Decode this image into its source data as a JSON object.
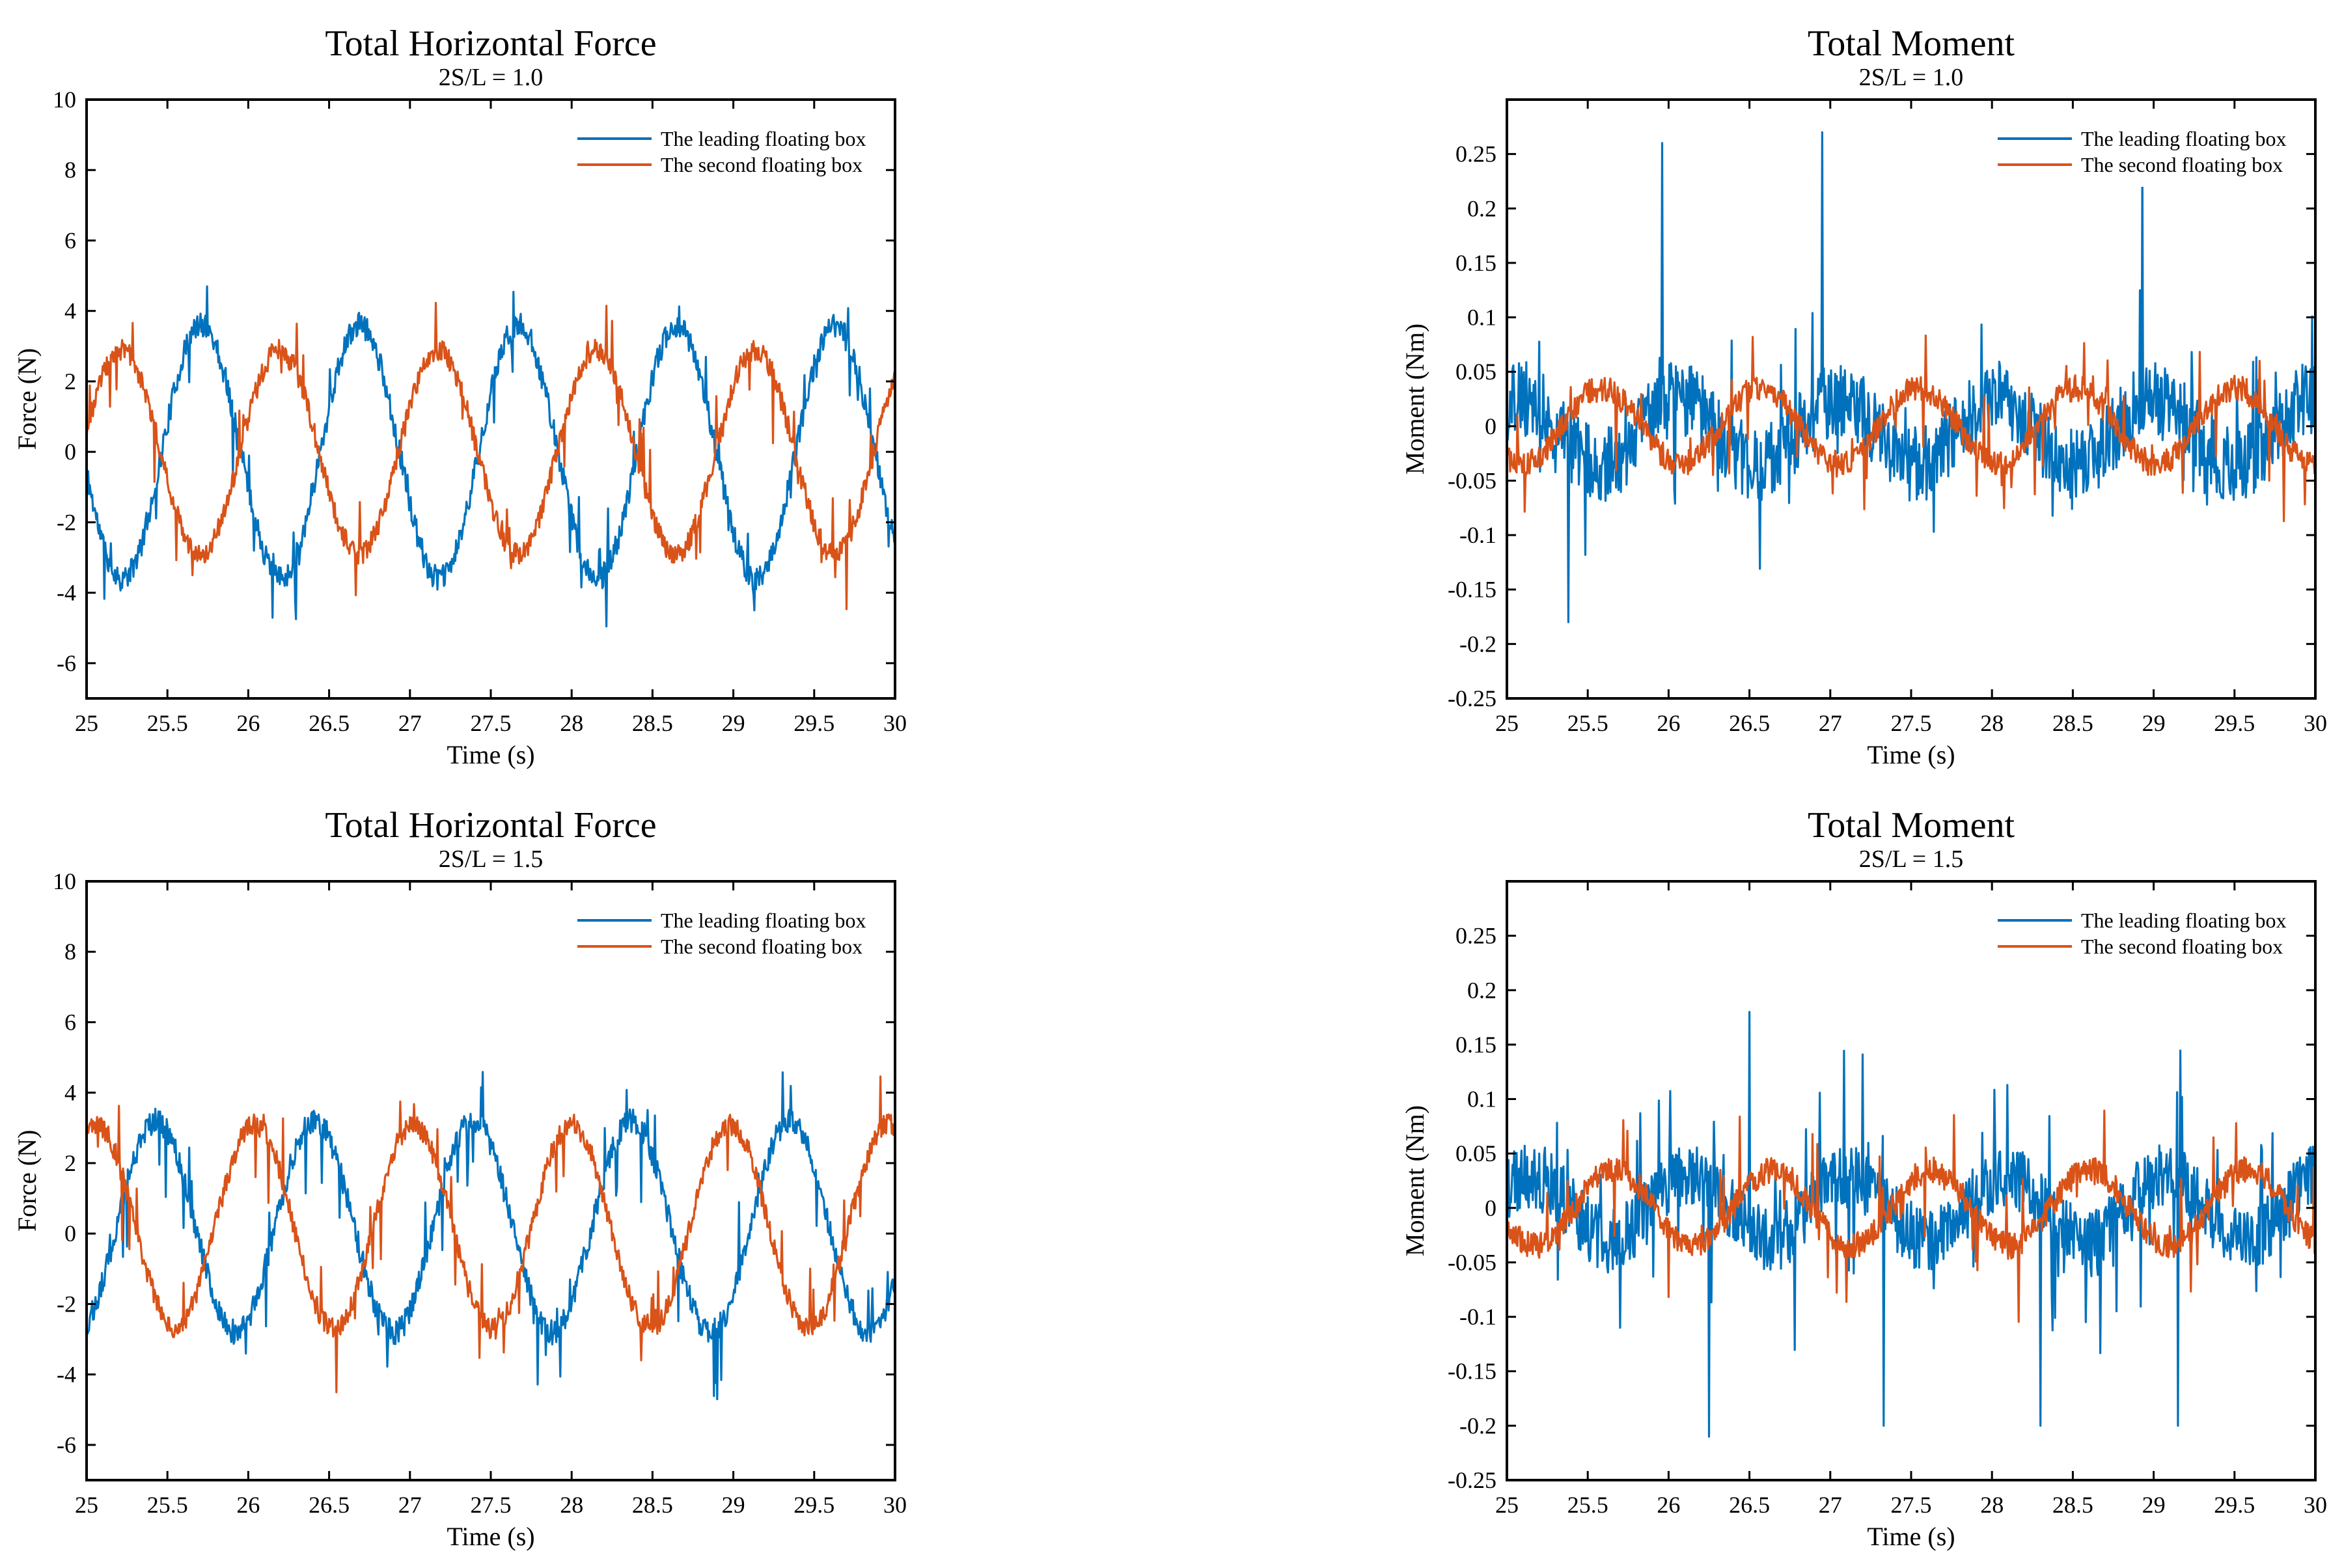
{
  "colors": {
    "leading": "#0072BD",
    "second": "#D95319",
    "axis": "#000000",
    "background": "#ffffff"
  },
  "chart_data": [
    {
      "type": "line",
      "title": "Total Horizontal Force",
      "subtitle": "2S/L = 1.0",
      "xlabel": "Time (s)",
      "ylabel": "Force (N)",
      "xlim": [
        25,
        30
      ],
      "ylim": [
        -7,
        10
      ],
      "xticks": [
        25,
        25.5,
        26,
        26.5,
        27,
        27.5,
        28,
        28.5,
        29,
        29.5,
        30
      ],
      "xtick_labels": [
        "25",
        "25.5",
        "26",
        "26.5",
        "27",
        "27.5",
        "28",
        "28.5",
        "29",
        "29.5",
        "30"
      ],
      "yticks": [
        -6,
        -4,
        -2,
        0,
        2,
        4,
        6,
        8,
        10
      ],
      "ytick_labels": [
        "-6",
        "-4",
        "-2",
        "0",
        "2",
        "4",
        "6",
        "8",
        "10"
      ],
      "legend_position": "top-right",
      "series": [
        {
          "name": "The leading floating box",
          "color": "#0072BD",
          "model": {
            "amplitude": 3.6,
            "offset": 0.0,
            "period": 0.98,
            "phase_at_start": 3.3,
            "noise": 0.35,
            "spike_rate": 0.05,
            "spike_size": 1.6,
            "seed": 11
          }
        },
        {
          "name": "The second floating box",
          "color": "#D95319",
          "model": {
            "amplitude": 2.9,
            "offset": 0.0,
            "period": 0.98,
            "phase_at_start": 0.2,
            "noise": 0.3,
            "spike_rate": 0.05,
            "spike_size": 1.8,
            "seed": 23
          }
        }
      ]
    },
    {
      "type": "line",
      "title": "Total Moment",
      "subtitle": "2S/L = 1.0",
      "xlabel": "Time (s)",
      "ylabel": "Moment (Nm)",
      "xlim": [
        25,
        30
      ],
      "ylim": [
        -0.25,
        0.3
      ],
      "xticks": [
        25,
        25.5,
        26,
        26.5,
        27,
        27.5,
        28,
        28.5,
        29,
        29.5,
        30
      ],
      "xtick_labels": [
        "25",
        "25.5",
        "26",
        "26.5",
        "27",
        "27.5",
        "28",
        "28.5",
        "29",
        "29.5",
        "30"
      ],
      "yticks": [
        -0.25,
        -0.2,
        -0.15,
        -0.1,
        -0.05,
        0,
        0.05,
        0.1,
        0.15,
        0.2,
        0.25
      ],
      "ytick_labels": [
        "-0.25",
        "-0.2",
        "-0.15",
        "-0.1",
        "-0.05",
        "0",
        "0.05",
        "0.1",
        "0.15",
        "0.2",
        "0.25"
      ],
      "legend_position": "top-right",
      "series": [
        {
          "name": "The leading floating box",
          "color": "#0072BD",
          "model": {
            "amplitude": 0.03,
            "offset": -0.005,
            "period": 0.98,
            "phase_at_start": 1.0,
            "noise": 0.035,
            "spike_rate": 0.07,
            "spike_size": 0.08,
            "big_spikes": [
              [
                25.96,
                0.26
              ],
              [
                26.95,
                0.27
              ],
              [
                28.93,
                0.24
              ],
              [
                25.38,
                -0.18
              ]
            ],
            "seed": 37
          }
        },
        {
          "name": "The second floating box",
          "color": "#D95319",
          "model": {
            "amplitude": 0.035,
            "offset": 0.0,
            "period": 0.98,
            "phase_at_start": 4.1,
            "noise": 0.012,
            "spike_rate": 0.05,
            "spike_size": 0.07,
            "seed": 41
          }
        }
      ]
    },
    {
      "type": "line",
      "title": "Total Horizontal Force",
      "subtitle": "2S/L = 1.5",
      "xlabel": "Time (s)",
      "ylabel": "Force (N)",
      "xlim": [
        25,
        30
      ],
      "ylim": [
        -7,
        10
      ],
      "xticks": [
        25,
        25.5,
        26,
        26.5,
        27,
        27.5,
        28,
        28.5,
        29,
        29.5,
        30
      ],
      "xtick_labels": [
        "25",
        "25.5",
        "26",
        "26.5",
        "27",
        "27.5",
        "28",
        "28.5",
        "29",
        "29.5",
        "30"
      ],
      "yticks": [
        -6,
        -4,
        -2,
        0,
        2,
        4,
        6,
        8,
        10
      ],
      "ytick_labels": [
        "-6",
        "-4",
        "-2",
        "0",
        "2",
        "4",
        "6",
        "8",
        "10"
      ],
      "legend_position": "top-right",
      "series": [
        {
          "name": "The leading floating box",
          "color": "#0072BD",
          "model": {
            "amplitude": 3.0,
            "offset": 0.2,
            "period": 0.98,
            "phase_at_start": 5.1,
            "noise": 0.35,
            "spike_rate": 0.06,
            "spike_size": 2.0,
            "seed": 53
          }
        },
        {
          "name": "The second floating box",
          "color": "#D95319",
          "model": {
            "amplitude": 2.9,
            "offset": 0.2,
            "period": 0.98,
            "phase_at_start": 1.2,
            "noise": 0.3,
            "spike_rate": 0.05,
            "spike_size": 1.8,
            "seed": 67
          }
        }
      ]
    },
    {
      "type": "line",
      "title": "Total Moment",
      "subtitle": "2S/L = 1.5",
      "xlabel": "Time (s)",
      "ylabel": "Moment (Nm)",
      "xlim": [
        25,
        30
      ],
      "ylim": [
        -0.25,
        0.3
      ],
      "xticks": [
        25,
        25.5,
        26,
        26.5,
        27,
        27.5,
        28,
        28.5,
        29,
        29.5,
        30
      ],
      "xtick_labels": [
        "25",
        "25.5",
        "26",
        "26.5",
        "27",
        "27.5",
        "28",
        "28.5",
        "29",
        "29.5",
        "30"
      ],
      "yticks": [
        -0.25,
        -0.2,
        -0.15,
        -0.1,
        -0.05,
        0,
        0.05,
        0.1,
        0.15,
        0.2,
        0.25
      ],
      "ytick_labels": [
        "-0.25",
        "-0.2",
        "-0.15",
        "-0.1",
        "-0.05",
        "0",
        "0.05",
        "0.1",
        "0.15",
        "0.2",
        "0.25"
      ],
      "legend_position": "top-right",
      "series": [
        {
          "name": "The leading floating box",
          "color": "#0072BD",
          "model": {
            "amplitude": 0.03,
            "offset": 0.0,
            "period": 0.98,
            "phase_at_start": 0.6,
            "noise": 0.03,
            "spike_rate": 0.08,
            "spike_size": 0.1,
            "big_spikes": [
              [
                26.25,
                -0.21
              ],
              [
                27.33,
                -0.2
              ],
              [
                28.3,
                -0.2
              ],
              [
                29.15,
                -0.2
              ],
              [
                26.5,
                0.18
              ]
            ],
            "seed": 79
          }
        },
        {
          "name": "The second floating box",
          "color": "#D95319",
          "model": {
            "amplitude": 0.035,
            "offset": 0.0,
            "period": 0.98,
            "phase_at_start": 3.6,
            "noise": 0.012,
            "spike_rate": 0.05,
            "spike_size": 0.07,
            "seed": 83
          }
        }
      ]
    }
  ]
}
